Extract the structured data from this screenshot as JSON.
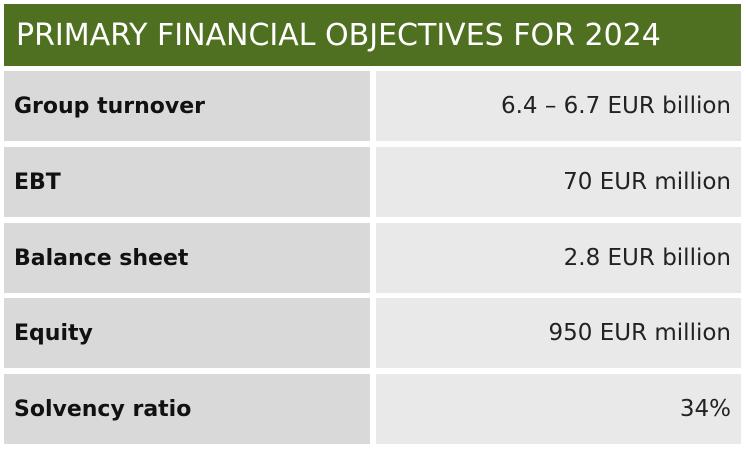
{
  "header": {
    "title": "PRIMARY FINANCIAL OBJECTIVES FOR 2024"
  },
  "rows": [
    {
      "label": "Group turnover",
      "value": "6.4 – 6.7 EUR billion"
    },
    {
      "label": "EBT",
      "value": "70 EUR million"
    },
    {
      "label": "Balance sheet",
      "value": "2.8 EUR billion"
    },
    {
      "label": "Equity",
      "value": "950 EUR million"
    },
    {
      "label": "Solvency ratio",
      "value": "34%"
    }
  ],
  "colors": {
    "header_bg": "#4f7021",
    "label_bg": "#d9d9d9",
    "value_bg": "#e9e9e9"
  }
}
